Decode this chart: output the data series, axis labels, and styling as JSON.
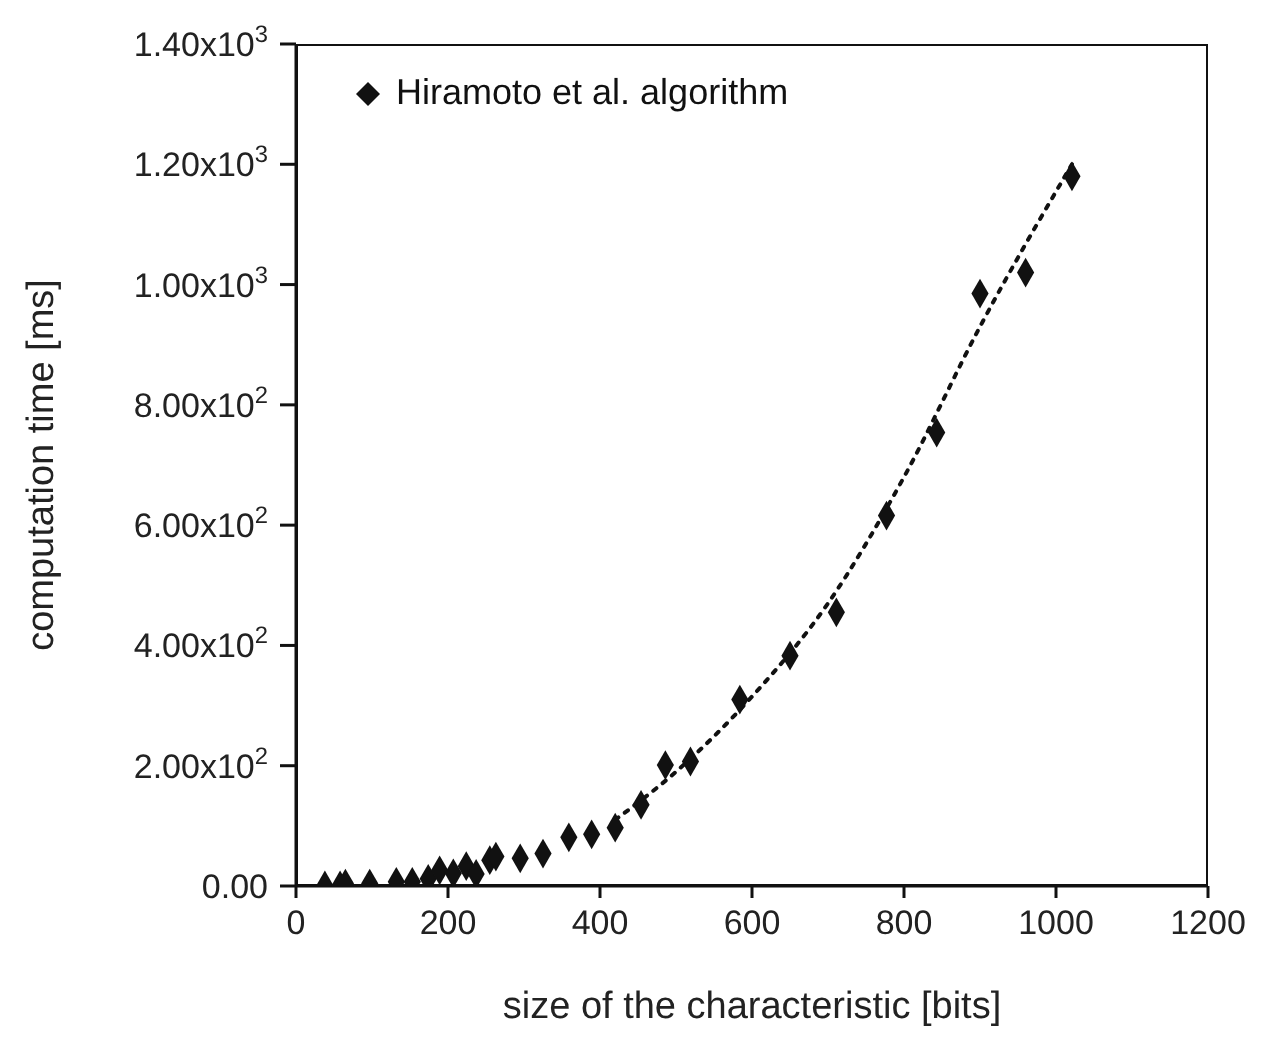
{
  "chart_data": {
    "type": "scatter",
    "xlabel": "size of the characteristic [bits]",
    "ylabel": "computation time [ms]",
    "xlim": [
      0,
      1200
    ],
    "xticks": [
      0,
      200,
      400,
      600,
      800,
      1000,
      1200
    ],
    "ylim": [
      0,
      1400
    ],
    "yticks": [
      {
        "value": 0,
        "label": "0.00"
      },
      {
        "value": 200,
        "label": "2.00x10$^{2}$"
      },
      {
        "value": 400,
        "label": "4.00x10$^{2}$"
      },
      {
        "value": 600,
        "label": "6.00x10$^{2}$"
      },
      {
        "value": 800,
        "label": "8.00x10$^{2}$"
      },
      {
        "value": 1000,
        "label": "1.00x10$^{3}$"
      },
      {
        "value": 1200,
        "label": "1.20x10$^{3}$"
      },
      {
        "value": 1400,
        "label": "1.40x10$^{3}$"
      }
    ],
    "grid": false,
    "legend": "top left",
    "marker": "diamond",
    "series": [
      {
        "name": "Hiramoto et al. algorithm",
        "color": "#111111",
        "type": "scatter",
        "x": [
          38,
          58,
          65,
          97,
          132,
          153,
          174,
          189,
          207,
          224,
          237,
          255,
          263,
          295,
          325,
          359,
          389,
          420,
          454,
          486,
          519,
          584,
          650,
          711,
          777,
          843,
          900,
          960,
          1021
        ],
        "values": [
          1,
          1,
          4,
          4,
          7,
          7,
          12,
          26,
          21,
          33,
          20,
          43,
          49,
          46,
          54,
          81,
          86,
          97,
          135,
          201,
          207,
          310,
          383,
          455,
          616,
          754,
          985,
          1020,
          1180
        ]
      },
      {
        "color": "#111111",
        "type": "line",
        "line_style": "dotted",
        "marker": "none",
        "x": [
          420,
          500,
          600,
          700,
          800,
          900,
          1021
        ],
        "values": [
          110,
          190,
          315,
          470,
          680,
          930,
          1200
        ]
      }
    ]
  }
}
